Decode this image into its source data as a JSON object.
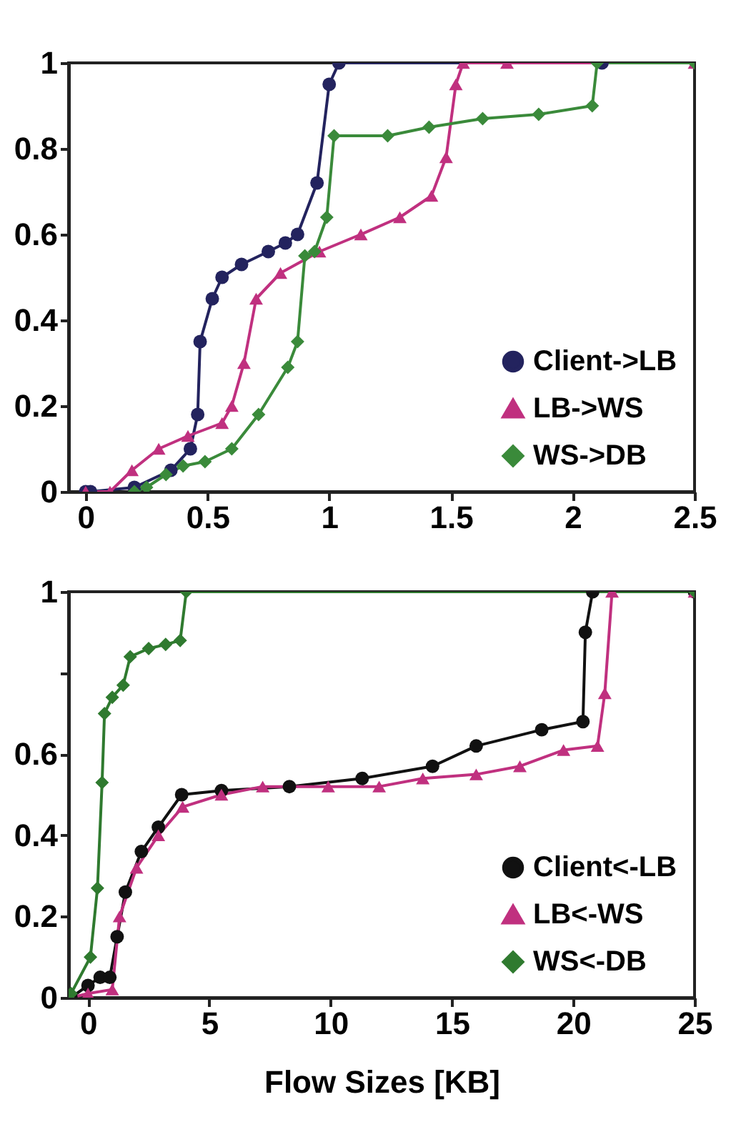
{
  "chart_data": [
    {
      "type": "line",
      "xlim": [
        -0.07,
        2.5
      ],
      "xticks": [
        0,
        0.5,
        1,
        1.5,
        2,
        2.5
      ],
      "ylim": [
        0,
        1
      ],
      "yticks": [
        0,
        0.2,
        0.4,
        0.6,
        0.8,
        1
      ],
      "grid": false,
      "legend": "bottom right",
      "series": [
        {
          "name": "Client->LB",
          "color": "#23235e",
          "marker": "circle",
          "x": [
            0,
            0.02,
            0.2,
            0.35,
            0.43,
            0.46,
            0.47,
            0.52,
            0.56,
            0.64,
            0.75,
            0.82,
            0.87,
            0.95,
            1.0,
            1.04,
            2.12
          ],
          "values": [
            0,
            0,
            0.01,
            0.05,
            0.1,
            0.18,
            0.35,
            0.45,
            0.5,
            0.53,
            0.56,
            0.58,
            0.6,
            0.72,
            0.95,
            1,
            1
          ]
        },
        {
          "name": "LB->WS",
          "color": "#c0307f",
          "marker": "triangle",
          "x": [
            0,
            0.1,
            0.19,
            0.3,
            0.42,
            0.56,
            0.6,
            0.65,
            0.7,
            0.8,
            0.96,
            1.13,
            1.29,
            1.42,
            1.48,
            1.52,
            1.55,
            1.73,
            2.5
          ],
          "values": [
            0,
            0,
            0.05,
            0.1,
            0.13,
            0.16,
            0.2,
            0.3,
            0.45,
            0.51,
            0.56,
            0.6,
            0.64,
            0.69,
            0.78,
            0.95,
            1,
            1,
            1
          ]
        },
        {
          "name": "WS->DB",
          "color": "#3a8a3a",
          "marker": "diamond",
          "x": [
            0.2,
            0.25,
            0.33,
            0.4,
            0.49,
            0.6,
            0.71,
            0.83,
            0.87,
            0.9,
            0.94,
            0.99,
            1.02,
            1.24,
            1.41,
            1.63,
            1.86,
            2.08,
            2.1,
            2.5
          ],
          "values": [
            0,
            0.01,
            0.04,
            0.06,
            0.07,
            0.1,
            0.18,
            0.29,
            0.35,
            0.55,
            0.56,
            0.64,
            0.83,
            0.83,
            0.85,
            0.87,
            0.88,
            0.9,
            1,
            1
          ]
        }
      ]
    },
    {
      "type": "line",
      "xlabel": "Flow Sizes [KB]",
      "xlim": [
        -0.8,
        25
      ],
      "xticks": [
        0,
        5,
        10,
        15,
        20,
        25
      ],
      "ylim": [
        0,
        1
      ],
      "yticks": [
        0,
        0.2,
        0.4,
        0.6,
        {
          "value": 0.8,
          "label": null
        },
        1
      ],
      "grid": false,
      "legend": "bottom right",
      "series": [
        {
          "name": "Client<-LB",
          "color": "#111111",
          "marker": "circle",
          "x": [
            -0.7,
            0,
            0.5,
            0.9,
            1.2,
            1.54,
            2.2,
            2.9,
            3.86,
            5.5,
            8.3,
            11.3,
            14.2,
            16,
            18.7,
            20.4,
            20.5,
            20.8,
            25
          ],
          "values": [
            0,
            0.03,
            0.05,
            0.05,
            0.15,
            0.26,
            0.36,
            0.42,
            0.5,
            0.51,
            0.52,
            0.54,
            0.57,
            0.62,
            0.66,
            0.68,
            0.9,
            1,
            1
          ]
        },
        {
          "name": "LB<-WS",
          "color": "#c0307f",
          "marker": "triangle",
          "x": [
            -0.7,
            0,
            1,
            1.3,
            2,
            2.9,
            3.9,
            5.5,
            7.2,
            9.9,
            12,
            13.8,
            16,
            17.8,
            19.6,
            21,
            21.3,
            21.6,
            25
          ],
          "values": [
            0,
            0.01,
            0.02,
            0.2,
            0.32,
            0.4,
            0.47,
            0.5,
            0.52,
            0.52,
            0.52,
            0.54,
            0.55,
            0.57,
            0.61,
            0.62,
            0.75,
            1,
            1
          ]
        },
        {
          "name": "WS<-DB",
          "color": "#2f7a2f",
          "marker": "diamond",
          "x": [
            -0.7,
            0.1,
            0.39,
            0.58,
            0.68,
            1,
            1.45,
            1.74,
            2.5,
            3.2,
            3.8,
            4.05,
            25
          ],
          "values": [
            0.01,
            0.1,
            0.27,
            0.53,
            0.7,
            0.74,
            0.77,
            0.84,
            0.86,
            0.87,
            0.88,
            1,
            1
          ]
        }
      ]
    }
  ]
}
